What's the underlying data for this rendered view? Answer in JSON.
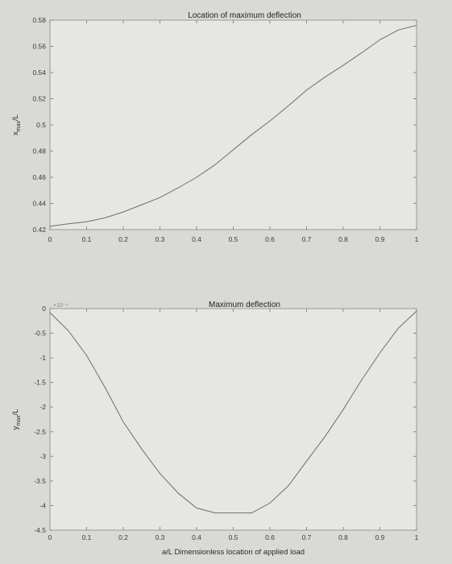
{
  "chart_data": [
    {
      "type": "line",
      "title": "Location of maximum deflection",
      "xlabel": "",
      "ylabel": "x_max/L",
      "ylabel_main": "x",
      "ylabel_sub": "max",
      "ylabel_tail": "/L",
      "xlim": [
        0,
        1
      ],
      "ylim": [
        0.42,
        0.58
      ],
      "xticks": [
        0,
        0.1,
        0.2,
        0.3,
        0.4,
        0.5,
        0.6,
        0.7,
        0.8,
        0.9,
        1
      ],
      "xtick_labels": [
        "0",
        "0.1",
        "0.2",
        "0.3",
        "0.4",
        "0.5",
        "0.6",
        "0.7",
        "0.8",
        "0.9",
        "1"
      ],
      "yticks": [
        0.42,
        0.44,
        0.46,
        0.48,
        0.5,
        0.52,
        0.54,
        0.56,
        0.58
      ],
      "ytick_labels": [
        "0.42",
        "0.44",
        "0.46",
        "0.48",
        "0.5",
        "0.52",
        "0.54",
        "0.56",
        "0.58"
      ],
      "grid": false,
      "series": [
        {
          "x": [
            0,
            0.05,
            0.1,
            0.15,
            0.2,
            0.25,
            0.3,
            0.35,
            0.4,
            0.45,
            0.5,
            0.55,
            0.6,
            0.65,
            0.7,
            0.75,
            0.8,
            0.85,
            0.9,
            0.95,
            1
          ],
          "y": [
            0.4225,
            0.4245,
            0.426,
            0.429,
            0.4335,
            0.439,
            0.4445,
            0.452,
            0.46,
            0.4695,
            0.481,
            0.4925,
            0.503,
            0.5145,
            0.5265,
            0.5365,
            0.5455,
            0.555,
            0.565,
            0.5725,
            0.576
          ]
        }
      ]
    },
    {
      "type": "line",
      "title": "Maximum deflection",
      "xlabel": "a/L  Dimensionless location of applied load",
      "ylabel": "y_max/L",
      "ylabel_main": "y",
      "ylabel_sub": "max",
      "ylabel_tail": "/L",
      "exponent_label": "×10⁻⁴",
      "xlim": [
        0,
        1
      ],
      "ylim": [
        -4.5,
        0
      ],
      "xticks": [
        0,
        0.1,
        0.2,
        0.3,
        0.4,
        0.5,
        0.6,
        0.7,
        0.8,
        0.9,
        1
      ],
      "xtick_labels": [
        "0",
        "0.1",
        "0.2",
        "0.3",
        "0.4",
        "0.5",
        "0.6",
        "0.7",
        "0.8",
        "0.9",
        "1"
      ],
      "yticks": [
        0,
        -0.5,
        -1,
        -1.5,
        -2,
        -2.5,
        -3,
        -3.5,
        -4,
        -4.5
      ],
      "ytick_labels": [
        "0",
        "-0.5",
        "-1",
        "-1.5",
        "-2",
        "-2.5",
        "-3",
        "-3.5",
        "-4",
        "-4.5"
      ],
      "grid": false,
      "series": [
        {
          "x": [
            0,
            0.05,
            0.1,
            0.15,
            0.2,
            0.25,
            0.3,
            0.35,
            0.4,
            0.45,
            0.5,
            0.55,
            0.6,
            0.65,
            0.7,
            0.75,
            0.8,
            0.85,
            0.9,
            0.95,
            1
          ],
          "y": [
            -0.08,
            -0.45,
            -0.95,
            -1.6,
            -2.3,
            -2.85,
            -3.35,
            -3.75,
            -4.05,
            -4.15,
            -4.15,
            -4.15,
            -3.95,
            -3.6,
            -3.1,
            -2.6,
            -2.05,
            -1.45,
            -0.9,
            -0.4,
            -0.05
          ]
        }
      ]
    }
  ]
}
